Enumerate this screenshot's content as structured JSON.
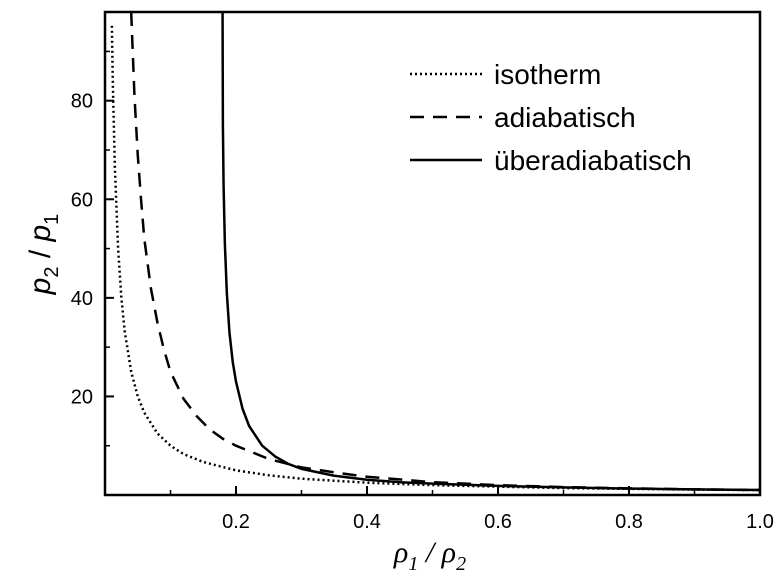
{
  "chart_data": {
    "type": "line",
    "xlim": [
      0,
      1.0
    ],
    "ylim": [
      0,
      98
    ],
    "xticks": [
      {
        "value": 0.2,
        "label": "0.2"
      },
      {
        "value": 0.4,
        "label": "0.4"
      },
      {
        "value": 0.6,
        "label": "0.6"
      },
      {
        "value": 0.8,
        "label": "0.8"
      },
      {
        "value": 1.0,
        "label": "1.0"
      }
    ],
    "yticks": [
      {
        "value": 20,
        "label": "20"
      },
      {
        "value": 40,
        "label": "40"
      },
      {
        "value": 60,
        "label": "60"
      },
      {
        "value": 80,
        "label": "80"
      }
    ],
    "xlabel": {
      "main1": "ρ",
      "sub1": "1",
      "slash": " / ",
      "main2": "ρ",
      "sub2": "2"
    },
    "ylabel": {
      "main1": "p",
      "sub1": "2",
      "slash": " / ",
      "main2": "p",
      "sub2": "1"
    },
    "legend_position": "top-right",
    "grid": false,
    "series": [
      {
        "name": "isotherm",
        "style": "dotted",
        "color": "#000000",
        "x": [
          0.0105,
          0.012,
          0.015,
          0.02,
          0.025,
          0.03,
          0.04,
          0.05,
          0.06,
          0.08,
          0.1,
          0.12,
          0.15,
          0.2,
          0.25,
          0.3,
          0.35,
          0.4,
          0.5,
          0.6,
          0.7,
          0.8,
          0.9,
          1.0
        ],
        "y": [
          95.2,
          83.3,
          66.7,
          50.0,
          40.0,
          33.3,
          25.0,
          20.0,
          16.7,
          12.5,
          10.0,
          8.3,
          6.7,
          5.0,
          4.0,
          3.3,
          2.9,
          2.5,
          2.0,
          1.7,
          1.4,
          1.25,
          1.1,
          1.0
        ]
      },
      {
        "name": "adiabatisch",
        "style": "dashed",
        "color": "#000000",
        "x": [
          0.04,
          0.042,
          0.045,
          0.05,
          0.055,
          0.06,
          0.07,
          0.08,
          0.09,
          0.1,
          0.12,
          0.14,
          0.16,
          0.18,
          0.2,
          0.25,
          0.3,
          0.35,
          0.4,
          0.5,
          0.6,
          0.7,
          0.8,
          0.9,
          1.0
        ],
        "y": [
          98.0,
          91.0,
          81.0,
          69.0,
          60.0,
          52.0,
          42.0,
          35.0,
          29.5,
          25.0,
          19.5,
          16.0,
          13.3,
          11.4,
          10.0,
          7.3,
          5.6,
          4.6,
          3.7,
          2.6,
          2.0,
          1.6,
          1.35,
          1.15,
          1.0
        ]
      },
      {
        "name": "überadiabatisch",
        "style": "solid",
        "color": "#000000",
        "x": [
          0.1795,
          0.1797,
          0.18,
          0.181,
          0.183,
          0.186,
          0.19,
          0.195,
          0.2,
          0.21,
          0.22,
          0.24,
          0.26,
          0.28,
          0.3,
          0.35,
          0.4,
          0.45,
          0.5,
          0.6,
          0.7,
          0.8,
          0.9,
          1.0
        ],
        "y": [
          98.0,
          88.0,
          75.0,
          63.0,
          51.0,
          41.0,
          33.0,
          27.0,
          23.0,
          17.5,
          14.0,
          10.0,
          7.8,
          6.3,
          5.3,
          3.9,
          3.1,
          2.6,
          2.3,
          1.85,
          1.55,
          1.3,
          1.15,
          1.0
        ]
      }
    ]
  }
}
